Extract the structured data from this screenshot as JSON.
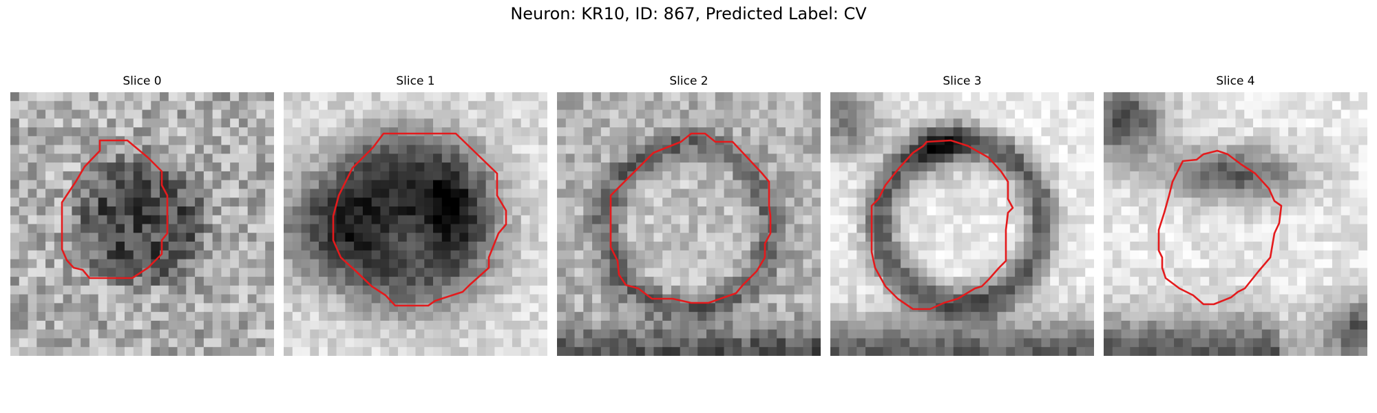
{
  "figure": {
    "title": "Neuron: KR10, ID: 867, Predicted Label: CV"
  },
  "panels": [
    {
      "title": "Slice 0"
    },
    {
      "title": "Slice 1"
    },
    {
      "title": "Slice 2"
    },
    {
      "title": "Slice 3"
    },
    {
      "title": "Slice 4"
    }
  ],
  "colors": {
    "contour": "#e41a1c",
    "background": "#ffffff"
  }
}
